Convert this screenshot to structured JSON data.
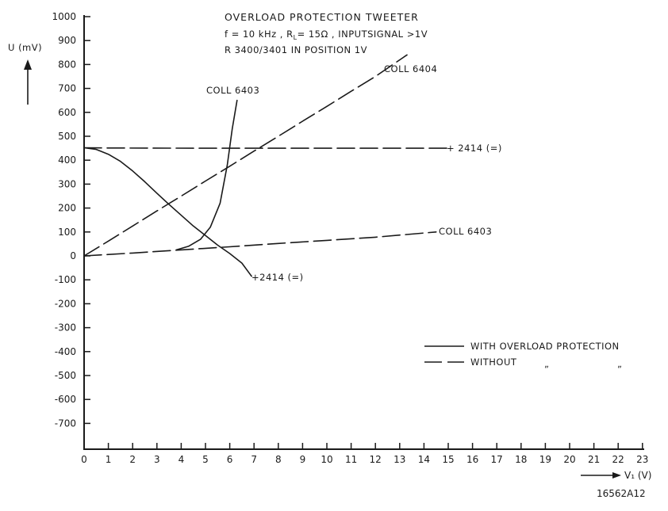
{
  "chart_data": {
    "type": "line",
    "title_lines": [
      "OVERLOAD PROTECTION TWEETER",
      "f = 10 kHz , R",
      "L",
      "= 15Ω , INPUTSIGNAL >1V",
      "R 3400/3401 IN POSITION 1V"
    ],
    "ylabel": "U (mV)",
    "xlabel": "V₁ (V)",
    "figure_id": "16562A12",
    "x_ticks": [
      "0",
      "1",
      "2",
      "3",
      "4",
      "5",
      "6",
      "7",
      "8",
      "9",
      "10",
      "11",
      "12",
      "13",
      "14",
      "15",
      "16",
      "17",
      "18",
      "19",
      "20",
      "21",
      "22",
      "23"
    ],
    "y_ticks": [
      "1000",
      "900",
      "800",
      "700",
      "600",
      "500",
      "400",
      "300",
      "200",
      "100",
      "0",
      "-100",
      "-200",
      "-300",
      "-400",
      "-500",
      "-600",
      "-700"
    ],
    "xlim": [
      0,
      23
    ],
    "ylim": [
      -800,
      1000
    ],
    "series": [
      {
        "label": "COLL 6404",
        "style": "dashed",
        "x": [
          0,
          1,
          2,
          3,
          4,
          5,
          6,
          7,
          8,
          9,
          10,
          11,
          12,
          13.3
        ],
        "y": [
          0,
          62,
          125,
          188,
          250,
          313,
          375,
          438,
          500,
          563,
          625,
          688,
          750,
          840
        ]
      },
      {
        "label": "+ 2414 (=)",
        "style": "dashed",
        "x": [
          0,
          1,
          5,
          10,
          15
        ],
        "y": [
          452,
          451,
          450,
          450,
          450
        ]
      },
      {
        "label": "COLL 6403",
        "style": "dashed",
        "x": [
          0,
          2,
          4,
          6,
          8,
          10,
          12,
          14.5
        ],
        "y": [
          0,
          12,
          25,
          38,
          52,
          65,
          78,
          100
        ]
      },
      {
        "label": "COLL 6403",
        "style": "solid",
        "x": [
          3.8,
          4.3,
          4.8,
          5.2,
          5.6,
          5.9,
          6.1,
          6.3
        ],
        "y": [
          25,
          40,
          70,
          120,
          220,
          380,
          530,
          650
        ]
      },
      {
        "label": "+2414 (=)",
        "style": "solid",
        "x": [
          0,
          0.5,
          1,
          1.5,
          2,
          2.5,
          3,
          3.5,
          4,
          4.5,
          5,
          5.5,
          6,
          6.5,
          6.9
        ],
        "y": [
          452,
          445,
          425,
          395,
          355,
          310,
          262,
          215,
          170,
          125,
          85,
          45,
          10,
          -30,
          -85
        ]
      }
    ],
    "legend": [
      {
        "style": "solid",
        "label": "WITH OVERLOAD  PROTECTION"
      },
      {
        "style": "dashed",
        "label": "WITHOUT",
        "ditto1": "„",
        "ditto2": "„"
      }
    ],
    "legend_position": "right"
  }
}
